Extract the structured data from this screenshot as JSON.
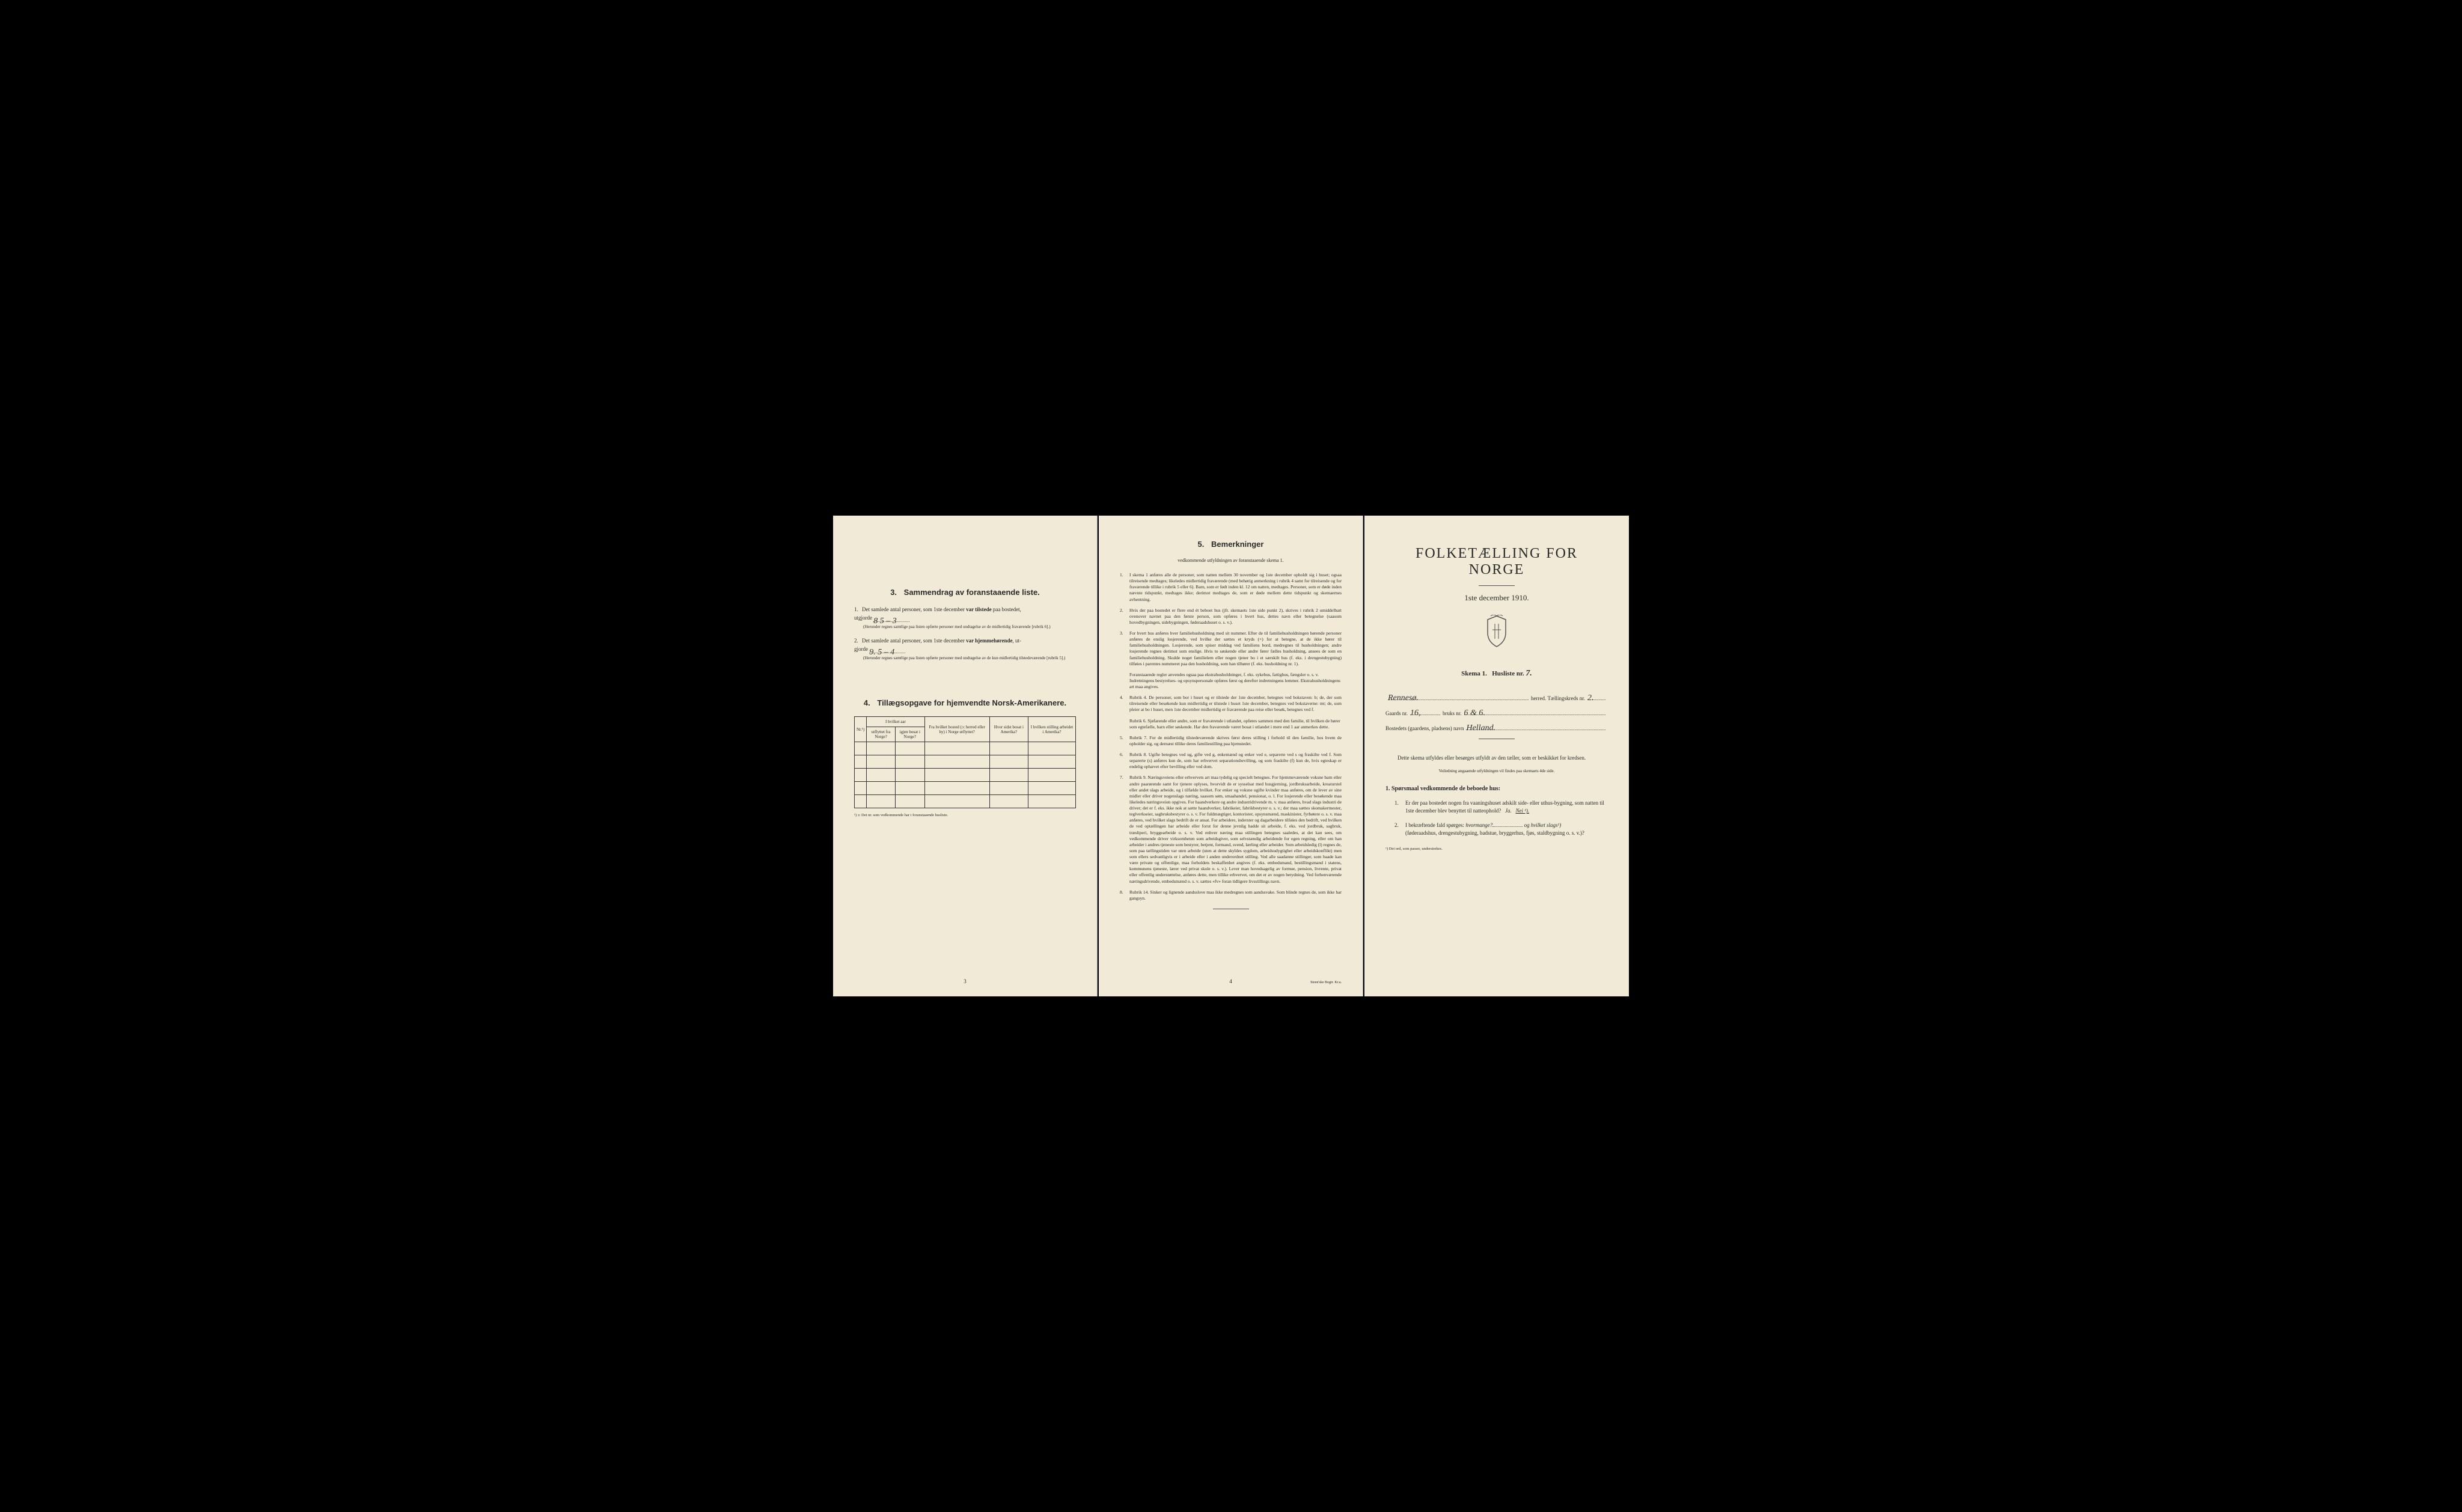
{
  "page_left": {
    "section3": {
      "number": "3.",
      "title": "Sammendrag av foranstaaende liste.",
      "item1": {
        "num": "1.",
        "text_a": "Det samlede antal personer, som 1ste december",
        "text_b": "var tilstede",
        "text_c": "paa bostedet,",
        "text_d": "utgjorde",
        "value": "8     5 – 3",
        "note": "(Herunder regnes samtlige paa listen opførte personer med undtagelse av de midlertidig fraværende [rubrik 6].)"
      },
      "item2": {
        "num": "2.",
        "text_a": "Det samlede antal personer, som 1ste december",
        "text_b": "var hjemmehørende",
        "text_c": ", ut-",
        "text_d": "gjorde",
        "value": "9.     5 – 4",
        "note": "(Herunder regnes samtlige paa listen opførte personer med undtagelse av de kun midlertidig tilstedeværende [rubrik 5].)"
      }
    },
    "section4": {
      "number": "4.",
      "title": "Tillægsopgave for hjemvendte Norsk-Amerikanere.",
      "headers": {
        "col1": "Nr.¹)",
        "col2_top": "I hvilket aar",
        "col2a": "utflyttet fra Norge?",
        "col2b": "igjen bosat i Norge?",
        "col3": "Fra hvilket bosted (ɔ: herred eller by) i Norge utflyttet?",
        "col4": "Hvor sidst bosat i Amerika?",
        "col5": "I hvilken stilling arbeidet i Amerika?"
      },
      "footnote": "¹) ɔ: Det nr. som vedkommende har i foranstaaende husliste.",
      "rows": 5
    },
    "page_num": "3"
  },
  "page_middle": {
    "section5": {
      "number": "5.",
      "title": "Bemerkninger",
      "subtitle": "vedkommende utfyldningen av foranstaaende skema 1.",
      "items": [
        {
          "n": "1.",
          "t": "I skema 1 anføres alle de personer, som natten mellem 30 november og 1ste december opholdt sig i huset; ogsaa tilreisende medtages; likeledes midlertidig fraværende (med behørig anmerkning i rubrik 4 samt for tilreisende og for fraværende tillike i rubrik 5 eller 6). Barn, som er født inden kl. 12 om natten, medtages. Personer, som er døde inden nævnte tidspunkt, medtages ikke; derimot medtages de, som er døde mellem dette tidspunkt og skemaernes avhentning."
        },
        {
          "n": "2.",
          "t": "Hvis der paa bostedet er flere end ét beboet hus (jfr. skemaets 1ste side punkt 2), skrives i rubrik 2 umiddelbart ovenover navnet paa den første person, som opføres i hvert hus, dettes navn eller betegnelse (saasom hovedbygningen, sidebygningen, føderaadshuset o. s. v.)."
        },
        {
          "n": "3.",
          "t": "For hvert hus anføres hver familiehusholdning med sit nummer. Efter de til familiehusholdningen hørende personer anføres de enslig losjerende, ved hvilke der sættes et kryds (×) for at betegne, at de ikke hører til familiehusholdningen. Losjerende, som spiser middag ved familiens bord, medregnes til husholdningen; andre losjerende regnes derimot som enslige. Hvis to søskende eller andre fører fælles husholdning, ansees de som en familiehusholdning. Skulde noget familielem eller nogen tjener bo i et særskilt hus (f. eks. i drengestubygning) tilføies i parentes nummeret paa den husholdning, som han tilhører (f. eks. husholdning nr. 1).",
          "sub": "Foranstaaende regler anvendes ogsaa paa ekstrahusholdninger, f. eks. sykehus, fattighus, fængsler o. s. v. Indretningens bestyrelses- og opsynspersonale opføres først og derefter indretningens lemmer. Ekstrahusholdningens art maa angives."
        },
        {
          "n": "4.",
          "t": "Rubrik 4. De personer, som bor i huset og er tilstede der 1ste december, betegnes ved bokstaven: b; de, der som tilreisende eller besøkende kun midlertidig er tilstede i huset 1ste december, betegnes ved bokstaverne: mt; de, som pleier at bo i huset, men 1ste december midlertidig er fraværende paa reise eller besøk, betegnes ved f.",
          "sub": "Rubrik 6. Sjøfarende eller andre, som er fraværende i utlandet, opføres sammen med den familie, til hvilken de hører som egtefælle, barn eller søskende. Har den fraværende været bosat i utlandet i mere end 1 aar anmerkes dette."
        },
        {
          "n": "5.",
          "t": "Rubrik 7. For de midlertidig tilstedeværende skrives først deres stilling i forhold til den familie, hos hvem de opholder sig, og dernæst tillike deres familiestilling paa hjemstedet."
        },
        {
          "n": "6.",
          "t": "Rubrik 8. Ugifte betegnes ved ug, gifte ved g, enkemænd og enker ved e, separerte ved s og fraskilte ved f. Som separerte (s) anføres kun de, som har erhvervet separationsbevilling, og som fraskilte (f) kun de, hvis egteskap er endelig ophævet efter bevilling eller ved dom."
        },
        {
          "n": "7.",
          "t": "Rubrik 9. Næringsveiens eller erhvervets art maa tydelig og specielt betegnes. For hjemmeværende voksne barn eller andre paarørende samt for tjenere oplyses, hvorvidt de er sysselsat med husgjerning, jordbruksarbeide, kreaturstel eller andet slags arbeide, og i tilfælde hvilket. For enker og voksne ugifte kvinder maa anføres, om de lever av sine midler eller driver nogenslags næring, saasom søm, smaahandel, pensionat, o. l. For losjerende eller besøkende maa likeledes næringsveien opgives. For haandverkere og andre industridrivende m. v. maa anføres, hvad slags industri de driver; det er f. eks. ikke nok at sætte haandverker, fabrikeier, fabrikbestyrer o. s. v.; der maa sættes skomakermester, teglverkseier, sagbruksbestyrer o. s. v. For fuldmægtiger, kontorister, opsynsmænd, maskinister, fyrbøtere o. s. v. maa anføres, ved hvilket slags bedrift de er ansat. For arbeidere, inderster og dagarbeidere tilføies den bedrift, ved hvilken de ved optællingen har arbeide eller forut for denne jevnlig hadde sit arbeide, f. eks. ved jordbruk, sagbruk, træsliperi, bryggearbeide o. s. v. Ved enhver næring maa stillingen betegnes saaledes, at det kan sees, om vedkommende driver virksomheten som arbeidsgiver, som selvstændig arbeidende for egen regning, eller om han arbeider i andres tjeneste som bestyrer, betjent, formand, svend, lærling eller arbeider. Som arbeidsledig (l) regnes de, som paa tællingstiden var uten arbeide (uten at dette skyldes sygdom, arbeidsudygtighet eller arbeidskonflikt) men som ellers sedvanligvis er i arbeide eller i anden underordnet stilling. Ved alle saadanne stillinger, som baade kan være private og offentlige, maa forholdets beskaffenhet angives (f. eks. embedsmand, bestillingsmand i statens, kommunens tjeneste, lærer ved privat skole o. s. v.). Lever man hovedsagelig av formue, pension, livrente, privat eller offentlig understøttelse, anføres dette, men tillike erhvervet, om det er av nogen betydning. Ved forhenværende næringsdrivende, embedsmænd o. s. v. sættes «fv» foran tidligere livsstillings navn."
        },
        {
          "n": "8.",
          "t": "Rubrik 14. Sinker og lignende aandsslove maa ikke medregnes som aandssvake. Som blinde regnes de, som ikke har gangsyn."
        }
      ]
    },
    "page_num": "4",
    "printer": "Steen'ske Bogtr. Kr.a."
  },
  "page_right": {
    "title": "FOLKETÆLLING FOR NORGE",
    "date": "1ste december 1910.",
    "skema": "Skema 1.",
    "husliste": "Husliste nr.",
    "husliste_val": "7.",
    "herred_val": "Rennesø.",
    "herred_label": "herred.",
    "kreds_label": "Tællingskreds nr.",
    "kreds_val": "2.",
    "gaards_label": "Gaards nr.",
    "gaards_val": "16,",
    "bruks_label": "bruks nr.",
    "bruks_val": "6 & 6.",
    "bosted_label": "Bostedets (gaardens, pladsens) navn",
    "bosted_val": "Helland.",
    "intro": "Dette skema utfyldes eller besørges utfyldt av den tæller, som er beskikket for kredsen.",
    "intro_note": "Veiledning angaaende utfyldningen vil findes paa skemaets 4de side.",
    "q_title": "1. Spørsmaal vedkommende de beboede hus:",
    "q1": {
      "num": "1.",
      "text": "Er der paa bostedet nogen fra vaaningshuset adskilt side- eller uthus-bygning, som natten til 1ste december blev benyttet til natteophold?",
      "ja": "Ja.",
      "nei": "Nei ¹)."
    },
    "q2": {
      "num": "2.",
      "text_a": "I bekræftende fald spørges:",
      "text_b": "hvormange?",
      "text_c": "og hvilket slags¹)",
      "text_d": "(føderaadshus, drengestubygning, badstue, bryggerhus, fjøs, staldbygning o. s. v.)?"
    },
    "footnote": "¹) Det ord, som passer, understrekes."
  }
}
